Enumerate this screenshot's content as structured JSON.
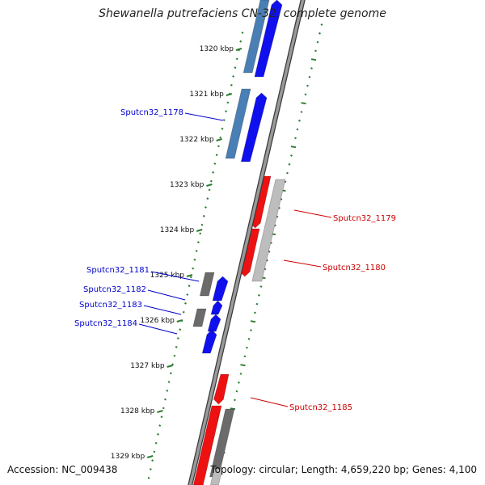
{
  "title": "Shewanella putrefaciens CN-32, complete genome",
  "accession": "Accession: NC_009438",
  "summary": "Topology: circular; Length: 4,659,220 bp; Genes: 4,100",
  "colors": {
    "backbone": "#8a8a8a",
    "ticks": "#2e7d32",
    "forward_gene": "#1010ee",
    "forward_alt": "#4a7fb5",
    "reverse_gene": "#ee1111",
    "reverse_alt": "#bdbdbd",
    "grey_gene": "#6b6b6b",
    "forward_label": "#0000cc",
    "reverse_label": "#cc0000"
  },
  "scale_labels": [
    {
      "kbp": 1320,
      "text": "1320 kbp"
    },
    {
      "kbp": 1321,
      "text": "1321 kbp"
    },
    {
      "kbp": 1322,
      "text": "1322 kbp"
    },
    {
      "kbp": 1323,
      "text": "1323 kbp"
    },
    {
      "kbp": 1324,
      "text": "1324 kbp"
    },
    {
      "kbp": 1325,
      "text": "1325 kbp"
    },
    {
      "kbp": 1326,
      "text": "1326 kbp"
    },
    {
      "kbp": 1327,
      "text": "1327 kbp"
    },
    {
      "kbp": 1328,
      "text": "1328 kbp"
    },
    {
      "kbp": 1329,
      "text": "1329 kbp"
    }
  ],
  "genes": [
    {
      "name": "Sputcn32_1178",
      "strand": "forward"
    },
    {
      "name": "Sputcn32_1179",
      "strand": "reverse"
    },
    {
      "name": "Sputcn32_1180",
      "strand": "reverse"
    },
    {
      "name": "Sputcn32_1181",
      "strand": "forward"
    },
    {
      "name": "Sputcn32_1182",
      "strand": "forward"
    },
    {
      "name": "Sputcn32_1183",
      "strand": "forward"
    },
    {
      "name": "Sputcn32_1184",
      "strand": "forward"
    },
    {
      "name": "Sputcn32_1185",
      "strand": "reverse"
    }
  ]
}
